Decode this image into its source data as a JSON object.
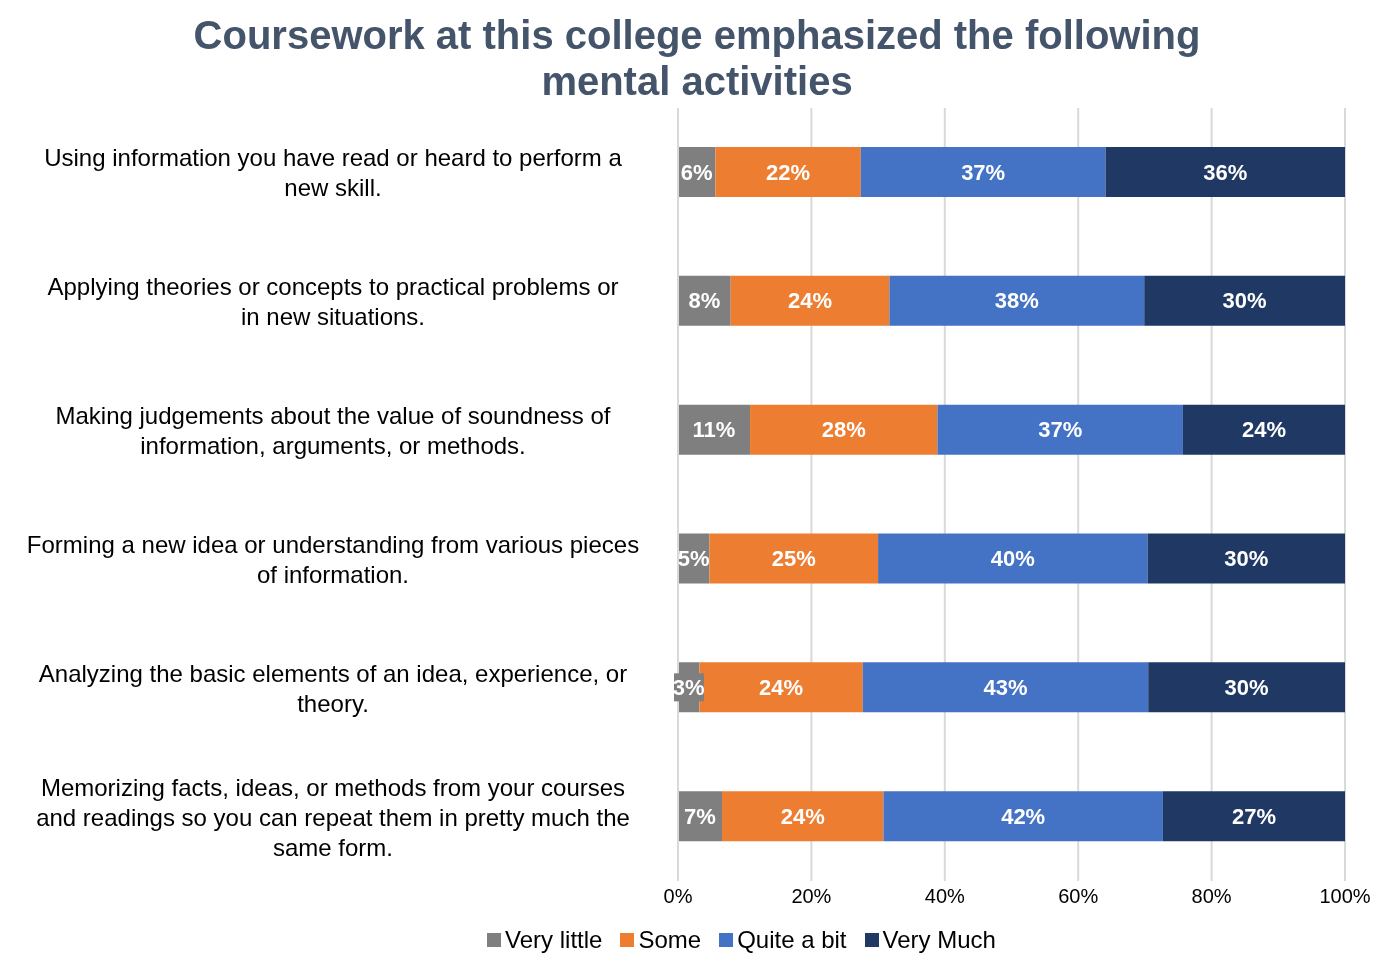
{
  "chart_data": {
    "type": "bar",
    "orientation": "horizontal",
    "stacked": true,
    "title": "Coursework at this college emphasized the following mental activities",
    "categories": [
      "Using information you have read or heard to perform a new skill.",
      "Applying theories or concepts to practical problems or in new situations.",
      "Making judgements about the value of soundness of information, arguments, or methods.",
      "Forming a new idea or understanding from various pieces of information.",
      "Analyzing the basic elements of an idea, experience, or theory.",
      "Memorizing facts, ideas, or methods from your courses and readings so you can repeat them in pretty much the same form."
    ],
    "series": [
      {
        "name": "Very little",
        "color": "#7f7f7f",
        "values": [
          5.6,
          7.9,
          10.8,
          4.7,
          3.2,
          6.6
        ],
        "value_labels": [
          "6%",
          "8%",
          "11%",
          "5%",
          "3%",
          "7%"
        ]
      },
      {
        "name": "Some",
        "color": "#ed7d31",
        "values": [
          21.8,
          23.8,
          28.1,
          25.3,
          24.5,
          24.2
        ],
        "value_labels": [
          "22%",
          "24%",
          "28%",
          "25%",
          "24%",
          "24%"
        ]
      },
      {
        "name": "Quite a bit",
        "color": "#4472c4",
        "values": [
          36.7,
          38.2,
          36.8,
          40.4,
          42.8,
          41.9
        ],
        "value_labels": [
          "37%",
          "38%",
          "37%",
          "40%",
          "43%",
          "42%"
        ]
      },
      {
        "name": "Very Much",
        "color": "#203864",
        "values": [
          35.9,
          30.1,
          24.3,
          29.6,
          29.5,
          27.3
        ],
        "value_labels": [
          "36%",
          "30%",
          "24%",
          "30%",
          "30%",
          "27%"
        ]
      }
    ],
    "xlim": [
      0,
      100
    ],
    "xticks": [
      {
        "value": 0,
        "label": "0%"
      },
      {
        "value": 20,
        "label": "20%"
      },
      {
        "value": 40,
        "label": "40%"
      },
      {
        "value": 60,
        "label": "60%"
      },
      {
        "value": 80,
        "label": "80%"
      },
      {
        "value": 100,
        "label": "100%"
      }
    ],
    "grid": "x",
    "legend": "bottom"
  }
}
